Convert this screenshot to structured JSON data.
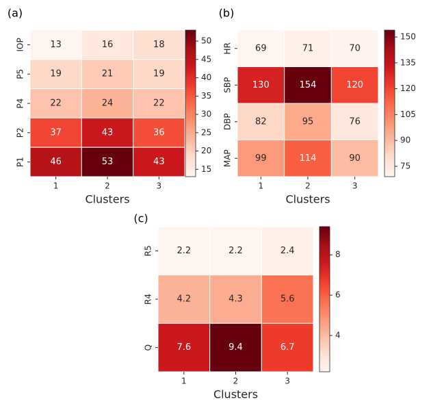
{
  "chart_data": [
    {
      "type": "heatmap",
      "panel_label": "(a)",
      "xlabel": "Clusters",
      "categories": [
        "1",
        "2",
        "3"
      ],
      "rows": [
        "IOP",
        "P5",
        "P4",
        "P2",
        "P1"
      ],
      "values": [
        [
          13,
          16,
          18
        ],
        [
          19,
          21,
          19
        ],
        [
          22,
          24,
          22
        ],
        [
          37,
          43,
          36
        ],
        [
          46,
          53,
          43
        ]
      ],
      "value_labels": [
        [
          "13",
          "16",
          "18"
        ],
        [
          "19",
          "21",
          "19"
        ],
        [
          "22",
          "24",
          "22"
        ],
        [
          "37",
          "43",
          "36"
        ],
        [
          "46",
          "53",
          "43"
        ]
      ],
      "colorbar_range": [
        13,
        53
      ],
      "colorbar_ticks": [
        15,
        20,
        25,
        30,
        35,
        40,
        45,
        50
      ],
      "colormap": "Reds"
    },
    {
      "type": "heatmap",
      "panel_label": "(b)",
      "xlabel": "Clusters",
      "categories": [
        "1",
        "2",
        "3"
      ],
      "rows": [
        "HR",
        "SBP",
        "DBP",
        "MAP"
      ],
      "values": [
        [
          69,
          71,
          70
        ],
        [
          130,
          154,
          120
        ],
        [
          82,
          95,
          76
        ],
        [
          99,
          114,
          90
        ]
      ],
      "value_labels": [
        [
          "69",
          "71",
          "70"
        ],
        [
          "130",
          "154",
          "120"
        ],
        [
          "82",
          "95",
          "76"
        ],
        [
          "99",
          "114",
          "90"
        ]
      ],
      "colorbar_range": [
        69,
        154
      ],
      "colorbar_ticks": [
        75,
        90,
        105,
        120,
        135,
        150
      ],
      "colormap": "Reds"
    },
    {
      "type": "heatmap",
      "panel_label": "(c)",
      "xlabel": "Clusters",
      "categories": [
        "1",
        "2",
        "3"
      ],
      "rows": [
        "R5",
        "R4",
        "Q"
      ],
      "values": [
        [
          2.2,
          2.2,
          2.4
        ],
        [
          4.2,
          4.3,
          5.6
        ],
        [
          7.6,
          9.4,
          6.7
        ]
      ],
      "value_labels": [
        [
          "2.2",
          "2.2",
          "2.4"
        ],
        [
          "4.2",
          "4.3",
          "5.6"
        ],
        [
          "7.6",
          "9.4",
          "6.7"
        ]
      ],
      "colorbar_range": [
        2.2,
        9.4
      ],
      "colorbar_ticks": [
        4,
        6,
        8
      ],
      "colormap": "Reds"
    }
  ]
}
